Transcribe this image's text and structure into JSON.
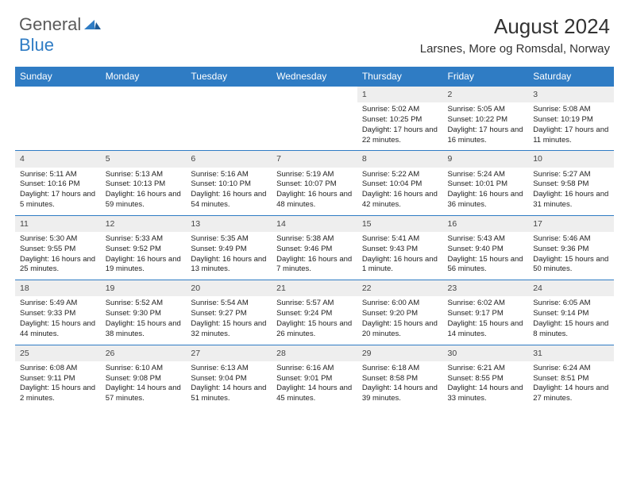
{
  "logo": {
    "part1": "General",
    "part2": "Blue"
  },
  "title": "August 2024",
  "location": "Larsnes, More og Romsdal, Norway",
  "colors": {
    "header_bg": "#2f7cc4",
    "header_text": "#ffffff",
    "daynum_bg": "#eeeeee",
    "row_divider": "#2f7cc4",
    "body_text": "#222222",
    "page_bg": "#ffffff"
  },
  "day_headers": [
    "Sunday",
    "Monday",
    "Tuesday",
    "Wednesday",
    "Thursday",
    "Friday",
    "Saturday"
  ],
  "weeks": [
    [
      null,
      null,
      null,
      null,
      {
        "n": "1",
        "sr": "5:02 AM",
        "ss": "10:25 PM",
        "dl": "17 hours and 22 minutes."
      },
      {
        "n": "2",
        "sr": "5:05 AM",
        "ss": "10:22 PM",
        "dl": "17 hours and 16 minutes."
      },
      {
        "n": "3",
        "sr": "5:08 AM",
        "ss": "10:19 PM",
        "dl": "17 hours and 11 minutes."
      }
    ],
    [
      {
        "n": "4",
        "sr": "5:11 AM",
        "ss": "10:16 PM",
        "dl": "17 hours and 5 minutes."
      },
      {
        "n": "5",
        "sr": "5:13 AM",
        "ss": "10:13 PM",
        "dl": "16 hours and 59 minutes."
      },
      {
        "n": "6",
        "sr": "5:16 AM",
        "ss": "10:10 PM",
        "dl": "16 hours and 54 minutes."
      },
      {
        "n": "7",
        "sr": "5:19 AM",
        "ss": "10:07 PM",
        "dl": "16 hours and 48 minutes."
      },
      {
        "n": "8",
        "sr": "5:22 AM",
        "ss": "10:04 PM",
        "dl": "16 hours and 42 minutes."
      },
      {
        "n": "9",
        "sr": "5:24 AM",
        "ss": "10:01 PM",
        "dl": "16 hours and 36 minutes."
      },
      {
        "n": "10",
        "sr": "5:27 AM",
        "ss": "9:58 PM",
        "dl": "16 hours and 31 minutes."
      }
    ],
    [
      {
        "n": "11",
        "sr": "5:30 AM",
        "ss": "9:55 PM",
        "dl": "16 hours and 25 minutes."
      },
      {
        "n": "12",
        "sr": "5:33 AM",
        "ss": "9:52 PM",
        "dl": "16 hours and 19 minutes."
      },
      {
        "n": "13",
        "sr": "5:35 AM",
        "ss": "9:49 PM",
        "dl": "16 hours and 13 minutes."
      },
      {
        "n": "14",
        "sr": "5:38 AM",
        "ss": "9:46 PM",
        "dl": "16 hours and 7 minutes."
      },
      {
        "n": "15",
        "sr": "5:41 AM",
        "ss": "9:43 PM",
        "dl": "16 hours and 1 minute."
      },
      {
        "n": "16",
        "sr": "5:43 AM",
        "ss": "9:40 PM",
        "dl": "15 hours and 56 minutes."
      },
      {
        "n": "17",
        "sr": "5:46 AM",
        "ss": "9:36 PM",
        "dl": "15 hours and 50 minutes."
      }
    ],
    [
      {
        "n": "18",
        "sr": "5:49 AM",
        "ss": "9:33 PM",
        "dl": "15 hours and 44 minutes."
      },
      {
        "n": "19",
        "sr": "5:52 AM",
        "ss": "9:30 PM",
        "dl": "15 hours and 38 minutes."
      },
      {
        "n": "20",
        "sr": "5:54 AM",
        "ss": "9:27 PM",
        "dl": "15 hours and 32 minutes."
      },
      {
        "n": "21",
        "sr": "5:57 AM",
        "ss": "9:24 PM",
        "dl": "15 hours and 26 minutes."
      },
      {
        "n": "22",
        "sr": "6:00 AM",
        "ss": "9:20 PM",
        "dl": "15 hours and 20 minutes."
      },
      {
        "n": "23",
        "sr": "6:02 AM",
        "ss": "9:17 PM",
        "dl": "15 hours and 14 minutes."
      },
      {
        "n": "24",
        "sr": "6:05 AM",
        "ss": "9:14 PM",
        "dl": "15 hours and 8 minutes."
      }
    ],
    [
      {
        "n": "25",
        "sr": "6:08 AM",
        "ss": "9:11 PM",
        "dl": "15 hours and 2 minutes."
      },
      {
        "n": "26",
        "sr": "6:10 AM",
        "ss": "9:08 PM",
        "dl": "14 hours and 57 minutes."
      },
      {
        "n": "27",
        "sr": "6:13 AM",
        "ss": "9:04 PM",
        "dl": "14 hours and 51 minutes."
      },
      {
        "n": "28",
        "sr": "6:16 AM",
        "ss": "9:01 PM",
        "dl": "14 hours and 45 minutes."
      },
      {
        "n": "29",
        "sr": "6:18 AM",
        "ss": "8:58 PM",
        "dl": "14 hours and 39 minutes."
      },
      {
        "n": "30",
        "sr": "6:21 AM",
        "ss": "8:55 PM",
        "dl": "14 hours and 33 minutes."
      },
      {
        "n": "31",
        "sr": "6:24 AM",
        "ss": "8:51 PM",
        "dl": "14 hours and 27 minutes."
      }
    ]
  ],
  "labels": {
    "sunrise": "Sunrise:",
    "sunset": "Sunset:",
    "daylight": "Daylight:"
  }
}
